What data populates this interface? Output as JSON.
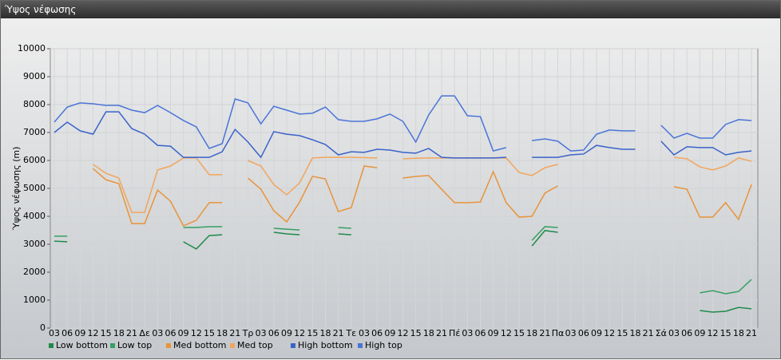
{
  "chart_data": {
    "type": "line",
    "title": "Ύψος νέφωσης",
    "y_label": "Ύψος νέφωσης (m)",
    "categories": [
      "03",
      "06",
      "09",
      "12",
      "15",
      "18",
      "21",
      "Δε",
      "03",
      "06",
      "09",
      "12",
      "15",
      "18",
      "21",
      "Τρ",
      "03",
      "06",
      "09",
      "12",
      "15",
      "18",
      "21",
      "Τε",
      "03",
      "06",
      "09",
      "12",
      "15",
      "18",
      "21",
      "Πέ",
      "03",
      "06",
      "09",
      "12",
      "15",
      "18",
      "21",
      "Πα",
      "03",
      "06",
      "09",
      "12",
      "15",
      "18",
      "21",
      "Σά",
      "03",
      "06",
      "09",
      "12",
      "15",
      "18",
      "21"
    ],
    "ylim": [
      0,
      10000
    ],
    "yticks": [
      0,
      1000,
      2000,
      3000,
      4000,
      5000,
      6000,
      7000,
      8000,
      9000,
      10000
    ],
    "grid": true,
    "series": [
      {
        "name": "Low bottom",
        "color": "#1f8a4c",
        "values": [
          3110,
          3090,
          null,
          null,
          null,
          null,
          null,
          null,
          null,
          null,
          3090,
          2830,
          3310,
          3340,
          null,
          null,
          null,
          3430,
          3370,
          3340,
          null,
          null,
          3370,
          3340,
          null,
          null,
          null,
          null,
          null,
          null,
          null,
          null,
          null,
          null,
          null,
          null,
          null,
          2940,
          3490,
          3430,
          null,
          null,
          null,
          null,
          null,
          null,
          null,
          null,
          null,
          null,
          630,
          570,
          600,
          740,
          690
        ]
      },
      {
        "name": "Low top",
        "color": "#35a062",
        "values": [
          3290,
          3290,
          null,
          null,
          null,
          null,
          null,
          null,
          null,
          null,
          3600,
          3600,
          3630,
          3630,
          null,
          null,
          null,
          3570,
          3540,
          3510,
          null,
          null,
          3600,
          3570,
          null,
          null,
          null,
          null,
          null,
          null,
          null,
          null,
          null,
          null,
          null,
          null,
          null,
          3140,
          3630,
          3600,
          null,
          null,
          null,
          null,
          null,
          null,
          null,
          null,
          null,
          null,
          1260,
          1340,
          1230,
          1310,
          1740
        ]
      },
      {
        "name": "Med bottom",
        "color": "#e8943a",
        "values": [
          null,
          null,
          null,
          5710,
          5310,
          5170,
          3740,
          3740,
          4940,
          4540,
          3660,
          3860,
          4490,
          4490,
          null,
          5370,
          4970,
          4200,
          3800,
          4510,
          5430,
          5340,
          4170,
          4310,
          5800,
          5740,
          null,
          5370,
          5430,
          5460,
          4970,
          4490,
          4490,
          4510,
          5600,
          4490,
          3970,
          4000,
          4830,
          5090,
          null,
          null,
          null,
          null,
          null,
          null,
          null,
          null,
          5060,
          4970,
          3970,
          3970,
          4490,
          3890,
          5140
        ]
      },
      {
        "name": "Med top",
        "color": "#f2a55c",
        "values": [
          null,
          null,
          null,
          5860,
          5540,
          5370,
          4140,
          4140,
          5660,
          5800,
          6090,
          6090,
          5490,
          5490,
          null,
          6000,
          5800,
          5140,
          4770,
          5200,
          6090,
          6110,
          6110,
          6110,
          6100,
          6090,
          null,
          6060,
          6080,
          6090,
          6090,
          6090,
          6090,
          6090,
          6090,
          6090,
          5570,
          5460,
          5740,
          5860,
          null,
          null,
          null,
          null,
          null,
          null,
          null,
          null,
          6110,
          6060,
          5770,
          5660,
          5800,
          6090,
          5970
        ]
      },
      {
        "name": "High bottom",
        "color": "#3a62c9",
        "values": [
          7000,
          7370,
          7060,
          6940,
          7740,
          7740,
          7140,
          6940,
          6540,
          6510,
          6110,
          6110,
          6110,
          6310,
          7110,
          6660,
          6110,
          7030,
          6940,
          6890,
          6740,
          6570,
          6200,
          6310,
          6290,
          6400,
          6370,
          6290,
          6260,
          6430,
          6110,
          6090,
          6090,
          6090,
          6090,
          6110,
          null,
          6110,
          6110,
          6110,
          6200,
          6230,
          6540,
          6460,
          6400,
          6400,
          null,
          6690,
          6200,
          6490,
          6460,
          6460,
          6200,
          6290,
          6340
        ]
      },
      {
        "name": "High top",
        "color": "#4a74d8",
        "values": [
          7370,
          7910,
          8060,
          8030,
          7970,
          7970,
          7800,
          7710,
          7970,
          7710,
          7430,
          7200,
          6430,
          6600,
          8200,
          8060,
          7310,
          7940,
          7800,
          7660,
          7690,
          7910,
          7460,
          7400,
          7400,
          7490,
          7660,
          7400,
          6660,
          7630,
          8310,
          8310,
          7600,
          7570,
          6340,
          6460,
          null,
          6710,
          6770,
          6690,
          6340,
          6370,
          6940,
          7090,
          7060,
          7060,
          null,
          7260,
          6800,
          6970,
          6800,
          6800,
          7290,
          7460,
          7430
        ]
      }
    ]
  }
}
